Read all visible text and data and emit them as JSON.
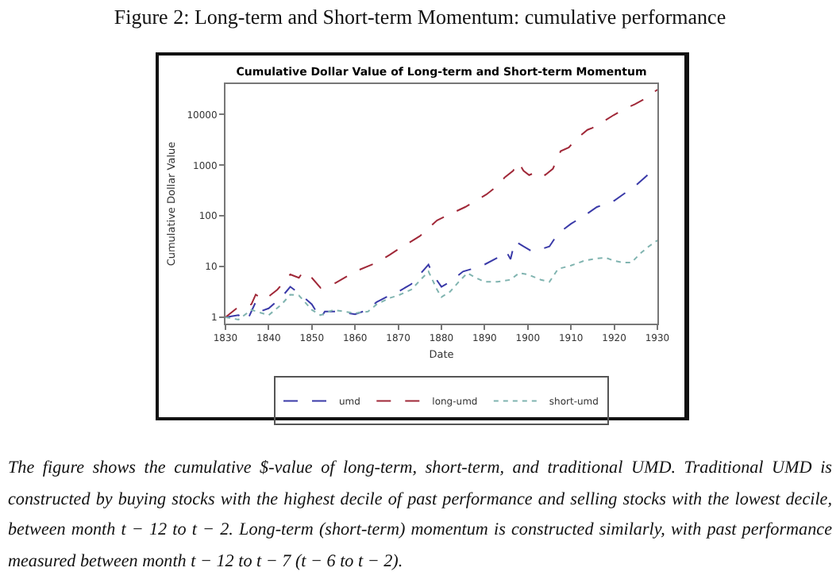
{
  "chart_data": {
    "type": "line",
    "title": "Figure 2: Long-term and Short-term Momentum: cumulative performance",
    "subtitle": "Cumulative Dollar Value of Long-term and Short-term Momentum",
    "xlabel": "Date",
    "ylabel": "Cumulative Dollar Value",
    "annotations": [
      "The figure shows the cumulative $-value of long-term, short-term, and traditional UMD. Traditional UMD is constructed by buying stocks with the highest decile of past performance and selling stocks with the lowest decile, between month t − 12 to t − 2.  Long-term (short-term) momentum is constructed similarly, with past performance measured between month t − 12 to t − 7 (t − 6 to t − 2)."
    ],
    "log": "y",
    "xlim": [
      1830,
      1930
    ],
    "xticks": [
      1830,
      1840,
      1850,
      1860,
      1870,
      1880,
      1890,
      1900,
      1910,
      1920,
      1930
    ],
    "ylim": [
      0.75,
      40000
    ],
    "yticks": [
      1,
      10,
      100,
      1000,
      10000
    ],
    "grid": false,
    "legend": "bottom",
    "series": [
      {
        "name": "umd",
        "color": "#3a3aa8",
        "line_style": "dashed",
        "x": [
          1830,
          1833,
          1835,
          1837,
          1838,
          1840,
          1843,
          1845,
          1847,
          1850,
          1852,
          1853,
          1856,
          1860,
          1863,
          1865,
          1868,
          1870,
          1873,
          1875,
          1877,
          1878,
          1880,
          1882,
          1885,
          1888,
          1890,
          1893,
          1895,
          1896,
          1897,
          1899,
          1901,
          1903,
          1905,
          1907,
          1910,
          1913,
          1916,
          1920,
          1925,
          1930
        ],
        "values": [
          1,
          1.1,
          0.85,
          2,
          1.3,
          1.5,
          2.5,
          4,
          3,
          1.8,
          0.95,
          1.3,
          1.3,
          1.15,
          1.4,
          2,
          2.7,
          3.2,
          4.5,
          7,
          11,
          7,
          4,
          5,
          8,
          9.5,
          11,
          15,
          20,
          14,
          32,
          25,
          20,
          22,
          25,
          45,
          70,
          100,
          150,
          200,
          400,
          950
        ]
      },
      {
        "name": "long-umd",
        "color": "#a02838",
        "line_style": "dashed",
        "x": [
          1830,
          1833,
          1836,
          1837,
          1839,
          1842,
          1845,
          1847,
          1848,
          1850,
          1852,
          1855,
          1860,
          1865,
          1868,
          1870,
          1875,
          1879,
          1885.5,
          1890.4,
          1892.9,
          1894.7,
          1896.6,
          1897.8,
          1899,
          1900.3,
          1902.7,
          1904,
          1905.8,
          1907.6,
          1909.5,
          1911.3,
          1913.8,
          1915,
          1917.5,
          1919.9,
          1922.4,
          1924.8,
          1927.3,
          1930
        ],
        "values": [
          1,
          1.6,
          1.8,
          2.8,
          2.2,
          3.5,
          7,
          6,
          8,
          6,
          3.8,
          4.5,
          8,
          12,
          17,
          22,
          40,
          82,
          150,
          265,
          390,
          580,
          780,
          1150,
          780,
          640,
          780,
          640,
          850,
          1900,
          2250,
          3350,
          5000,
          5500,
          7300,
          9800,
          13000,
          16000,
          21000,
          31000
        ]
      },
      {
        "name": "short-umd",
        "color": "#80b4b0",
        "line_style": "dotted",
        "x": [
          1830,
          1833,
          1836,
          1840,
          1843,
          1845,
          1847,
          1850,
          1852,
          1855,
          1860,
          1863,
          1865,
          1868,
          1870,
          1873,
          1877,
          1879,
          1880,
          1882,
          1884,
          1886,
          1888,
          1890,
          1893,
          1896,
          1898,
          1900,
          1903,
          1905,
          1907,
          1910,
          1913,
          1916,
          1918,
          1920,
          1922,
          1924,
          1926,
          1928,
          1930
        ],
        "values": [
          1,
          0.9,
          1.4,
          1.1,
          1.8,
          2.8,
          2.7,
          1.4,
          1.1,
          1.4,
          1.2,
          1.3,
          1.8,
          2.4,
          2.7,
          3.5,
          8,
          3.5,
          2.5,
          3.2,
          5,
          7.5,
          6,
          5,
          5,
          5.5,
          7.5,
          7,
          5.5,
          5,
          9,
          10.5,
          13,
          14.5,
          15,
          13,
          12,
          12,
          18,
          25,
          33
        ]
      }
    ]
  }
}
